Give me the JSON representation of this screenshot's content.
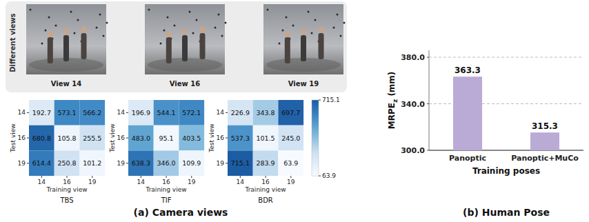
{
  "views_panel": {
    "label": "Different views",
    "views": [
      "View 14",
      "View 16",
      "View 19"
    ]
  },
  "chart_data": [
    {
      "type": "heatmap",
      "title": "TBS",
      "x_label": "Training view",
      "y_label": "Test view",
      "x_categories": [
        "14",
        "16",
        "19"
      ],
      "y_categories": [
        "14",
        "16",
        "19"
      ],
      "cells": [
        [
          192.7,
          573.1,
          566.2
        ],
        [
          680.8,
          105.8,
          255.5
        ],
        [
          614.4,
          250.8,
          101.2
        ]
      ],
      "data_labels": true
    },
    {
      "type": "heatmap",
      "title": "TIF",
      "x_label": "Training view",
      "y_label": "Test view",
      "x_categories": [
        "14",
        "16",
        "19"
      ],
      "y_categories": [
        "14",
        "16",
        "19"
      ],
      "cells": [
        [
          196.9,
          544.1,
          572.1
        ],
        [
          483.0,
          95.1,
          403.5
        ],
        [
          638.3,
          346.0,
          109.9
        ]
      ],
      "cell_labels": [
        [
          "196.9",
          "544.1",
          "572.1"
        ],
        [
          "483.0",
          "95.1",
          "403.5"
        ],
        [
          "638.3",
          "346.0",
          "109.9"
        ]
      ],
      "data_labels": true
    },
    {
      "type": "heatmap",
      "title": "BDR",
      "x_label": "Training view",
      "y_label": "Test view",
      "x_categories": [
        "14",
        "16",
        "19"
      ],
      "y_categories": [
        "14",
        "16",
        "19"
      ],
      "cells": [
        [
          226.9,
          343.8,
          697.7
        ],
        [
          537.3,
          101.5,
          245.0
        ],
        [
          715.1,
          283.9,
          63.9
        ]
      ],
      "cell_labels": [
        [
          "226.9",
          "343.8",
          "697.7"
        ],
        [
          "537.3",
          "101.5",
          "245.0"
        ],
        [
          "715.1",
          "283.9",
          "63.9"
        ]
      ],
      "data_labels": true
    },
    {
      "type": "bar",
      "x_label": "Training poses",
      "y_label": {
        "text": "MRPE",
        "subscript": "z",
        "suffix": " (mm)"
      },
      "categories": [
        "Panoptic",
        "Panoptic+MuCo"
      ],
      "values": [
        363.3,
        315.3
      ],
      "color": "#b9abd6",
      "ylim": [
        300,
        386
      ],
      "yticks": [
        {
          "value": 300,
          "label": "300.0"
        },
        {
          "value": 340,
          "label": "340.0"
        },
        {
          "value": 380,
          "label": "380.0"
        }
      ],
      "grid": true,
      "data_labels": true
    }
  ],
  "colorbar": {
    "range": [
      63.9,
      715.1
    ],
    "ticks": [
      63.9,
      715.1
    ]
  },
  "captions": [
    "(a) Camera views",
    "(b) Human Pose"
  ]
}
